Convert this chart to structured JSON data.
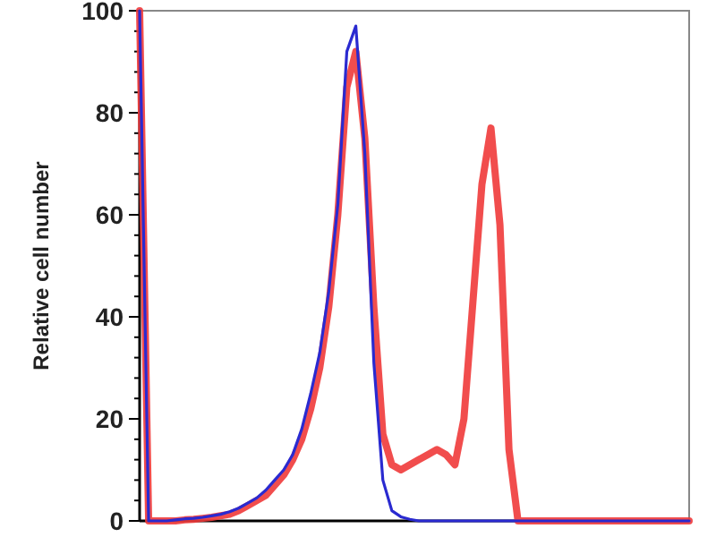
{
  "chart_data": {
    "type": "line",
    "ylabel": "Relative cell number",
    "categories": [
      null,
      null,
      null,
      null,
      null,
      null,
      null,
      null,
      null,
      null,
      null,
      null,
      null,
      null,
      null,
      null,
      null,
      null,
      null,
      null,
      null,
      null,
      null,
      null,
      null,
      null,
      null,
      null,
      null,
      null,
      null,
      null,
      null,
      null,
      null,
      null,
      null,
      null,
      null,
      null,
      null,
      null,
      null,
      null,
      null,
      null,
      null,
      null,
      null,
      null,
      null,
      null,
      null,
      null,
      null,
      null,
      null,
      null,
      null,
      null,
      null,
      null
    ],
    "series": [
      {
        "color": "#f03a3a",
        "values": [
          100,
          0,
          0,
          0,
          0,
          0.2,
          0.3,
          0.5,
          0.7,
          1,
          1.3,
          2,
          3,
          4,
          5,
          7,
          9,
          12,
          16,
          22,
          30,
          42,
          60,
          85,
          92,
          75,
          42,
          17,
          11,
          10,
          11,
          12,
          13,
          14,
          13,
          11,
          20,
          43,
          66,
          77,
          58,
          14,
          0,
          0,
          0,
          0,
          0,
          0,
          0,
          0,
          0,
          0,
          0,
          0,
          0,
          0,
          0,
          0,
          0,
          0,
          0,
          0
        ]
      },
      {
        "color": "#2a2ad0",
        "values": [
          100,
          0,
          0,
          0,
          0.2,
          0.4,
          0.5,
          0.7,
          1,
          1.3,
          1.8,
          2.5,
          3.5,
          4.5,
          6,
          8,
          10,
          13,
          18,
          25,
          33,
          45,
          62,
          92,
          97,
          72,
          31,
          8,
          2,
          0.8,
          0.3,
          0,
          0,
          0,
          0,
          0,
          0,
          0,
          0,
          0,
          0,
          0,
          0,
          0,
          0,
          0,
          0,
          0,
          0,
          0,
          0,
          0,
          0,
          0,
          0,
          0,
          0,
          0,
          0,
          0,
          0,
          0
        ]
      }
    ],
    "ylim": [
      0,
      100
    ],
    "yticks": [
      0,
      {
        "value": 4,
        "label": null
      },
      {
        "value": 8,
        "label": null
      },
      {
        "value": 12,
        "label": null
      },
      {
        "value": 16,
        "label": null
      },
      20,
      {
        "value": 24,
        "label": null
      },
      {
        "value": 28,
        "label": null
      },
      {
        "value": 32,
        "label": null
      },
      {
        "value": 36,
        "label": null
      },
      40,
      {
        "value": 44,
        "label": null
      },
      {
        "value": 48,
        "label": null
      },
      {
        "value": 52,
        "label": null
      },
      {
        "value": 56,
        "label": null
      },
      60,
      {
        "value": 64,
        "label": null
      },
      {
        "value": 68,
        "label": null
      },
      {
        "value": 72,
        "label": null
      },
      {
        "value": 76,
        "label": null
      },
      80,
      {
        "value": 84,
        "label": null
      },
      {
        "value": 88,
        "label": null
      },
      {
        "value": 92,
        "label": null
      },
      {
        "value": 96,
        "label": null
      },
      100
    ],
    "grid": false,
    "marker": "none",
    "line_style": "solid"
  }
}
